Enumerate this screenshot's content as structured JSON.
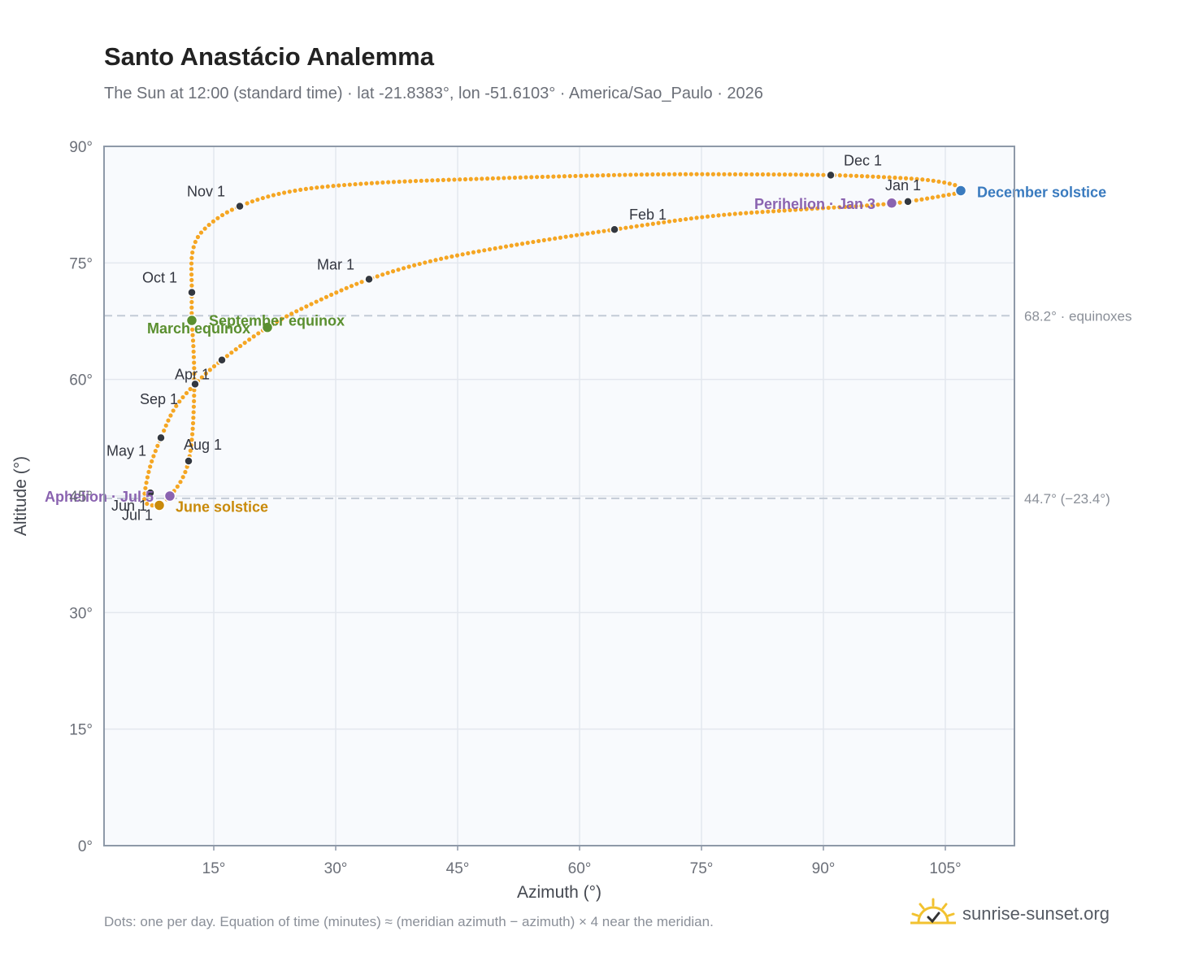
{
  "header": {
    "title": "Santo Anastácio Analemma",
    "subtitle": "The Sun at 12:00 (standard time) · lat -21.8383°, lon -51.6103° · America/Sao_Paulo · 2026"
  },
  "footer": {
    "note": "Dots: one per day. Equation of time (minutes) ≈ (meridian azimuth − azimuth) × 4 near the meridian.",
    "brand": "sunrise-sunset.org",
    "brand_icon": "sun-check-icon"
  },
  "colors": {
    "path": "#f5a623",
    "month_marker": "#333840",
    "equinox": "#5a8f2f",
    "june_solstice": "#c98a0a",
    "december_solstice": "#3a7bbf",
    "apsis": "#8a63b0",
    "plot_bg": "#f8fafd",
    "grid": "#e3e7ee",
    "ref_line": "#c3cbd6"
  },
  "chart_data": {
    "type": "scatter",
    "title": "Santo Anastácio Analemma",
    "xlabel": "Azimuth (°)",
    "ylabel": "Altitude (°)",
    "xlim": [
      1.5,
      113.5
    ],
    "ylim": [
      0,
      90
    ],
    "x_ticks": [
      15,
      30,
      45,
      60,
      75,
      90,
      105
    ],
    "x_tick_labels": [
      "15°",
      "30°",
      "45°",
      "60°",
      "75°",
      "90°",
      "105°"
    ],
    "y_ticks": [
      0,
      15,
      30,
      45,
      60,
      75,
      90
    ],
    "y_tick_labels": [
      "0°",
      "15°",
      "30°",
      "45°",
      "60°",
      "75°",
      "90°"
    ],
    "grid": true,
    "reference_lines": [
      {
        "y": 68.2,
        "label": "68.2° · equinoxes"
      },
      {
        "y": 44.7,
        "label": "44.7° (−23.4°)"
      }
    ],
    "series": [
      {
        "points": [
          [
            106.1,
            83.9
          ],
          [
            100.4,
            82.9
          ],
          [
            95.5,
            82.4
          ],
          [
            86.0,
            81.8
          ],
          [
            76.0,
            81.0
          ],
          [
            64.3,
            79.3
          ],
          [
            52.0,
            77.3
          ],
          [
            42.0,
            75.3
          ],
          [
            34.1,
            72.9
          ],
          [
            27.0,
            69.7
          ],
          [
            21.6,
            66.7
          ],
          [
            16.0,
            62.5
          ],
          [
            12.7,
            59.4
          ],
          [
            10.2,
            56.3
          ],
          [
            8.5,
            52.5
          ],
          [
            7.2,
            48.9
          ],
          [
            6.5,
            45.4
          ],
          [
            6.6,
            44.2
          ],
          [
            7.4,
            43.8
          ],
          [
            8.5,
            44.0
          ],
          [
            9.6,
            45.0
          ],
          [
            11.0,
            47.0
          ],
          [
            11.9,
            49.5
          ],
          [
            12.4,
            53.5
          ],
          [
            12.6,
            59.4
          ],
          [
            12.5,
            64.0
          ],
          [
            12.3,
            67.6
          ],
          [
            12.3,
            71.2
          ],
          [
            12.4,
            76.5
          ],
          [
            14.0,
            79.5
          ],
          [
            18.2,
            82.3
          ],
          [
            25.0,
            84.3
          ],
          [
            35.0,
            85.3
          ],
          [
            50.0,
            85.9
          ],
          [
            60.0,
            86.2
          ],
          [
            70.0,
            86.4
          ],
          [
            80.0,
            86.4
          ],
          [
            90.9,
            86.3
          ],
          [
            100.0,
            85.9
          ],
          [
            104.0,
            85.5
          ],
          [
            106.5,
            84.9
          ],
          [
            106.9,
            84.3
          ],
          [
            106.1,
            83.9
          ]
        ]
      }
    ],
    "month_markers": [
      {
        "label": "Jan 1",
        "x": 100.4,
        "y": 82.9
      },
      {
        "label": "Feb 1",
        "x": 64.3,
        "y": 79.3
      },
      {
        "label": "Mar 1",
        "x": 34.1,
        "y": 72.9
      },
      {
        "label": "Apr 1",
        "x": 12.7,
        "y": 59.4
      },
      {
        "label": "May 1",
        "x": 8.5,
        "y": 52.5
      },
      {
        "label": "Jun 1",
        "x": 7.2,
        "y": 45.4
      },
      {
        "label": "Jul 1",
        "x": 8.5,
        "y": 44.0
      },
      {
        "label": "Aug 1",
        "x": 11.9,
        "y": 49.5
      },
      {
        "label": "Sep 1",
        "x": 16.0,
        "y": 62.5
      },
      {
        "label": "Oct 1",
        "x": 12.3,
        "y": 71.2
      },
      {
        "label": "Nov 1",
        "x": 18.2,
        "y": 82.3
      },
      {
        "label": "Dec 1",
        "x": 90.9,
        "y": 86.3
      }
    ],
    "events": [
      {
        "label": "March equinox",
        "x": 12.3,
        "y": 67.6,
        "color_key": "equinox"
      },
      {
        "label": "September equinox",
        "x": 21.6,
        "y": 66.7,
        "color_key": "equinox"
      },
      {
        "label": "June solstice",
        "x": 8.3,
        "y": 43.8,
        "color_key": "june_solstice"
      },
      {
        "label": "December solstice",
        "x": 106.9,
        "y": 84.3,
        "color_key": "december_solstice"
      },
      {
        "label": "Perihelion · Jan 3",
        "x": 98.4,
        "y": 82.7,
        "color_key": "apsis"
      },
      {
        "label": "Aphelion · Jul 5",
        "x": 9.6,
        "y": 45.0,
        "color_key": "apsis"
      }
    ]
  }
}
